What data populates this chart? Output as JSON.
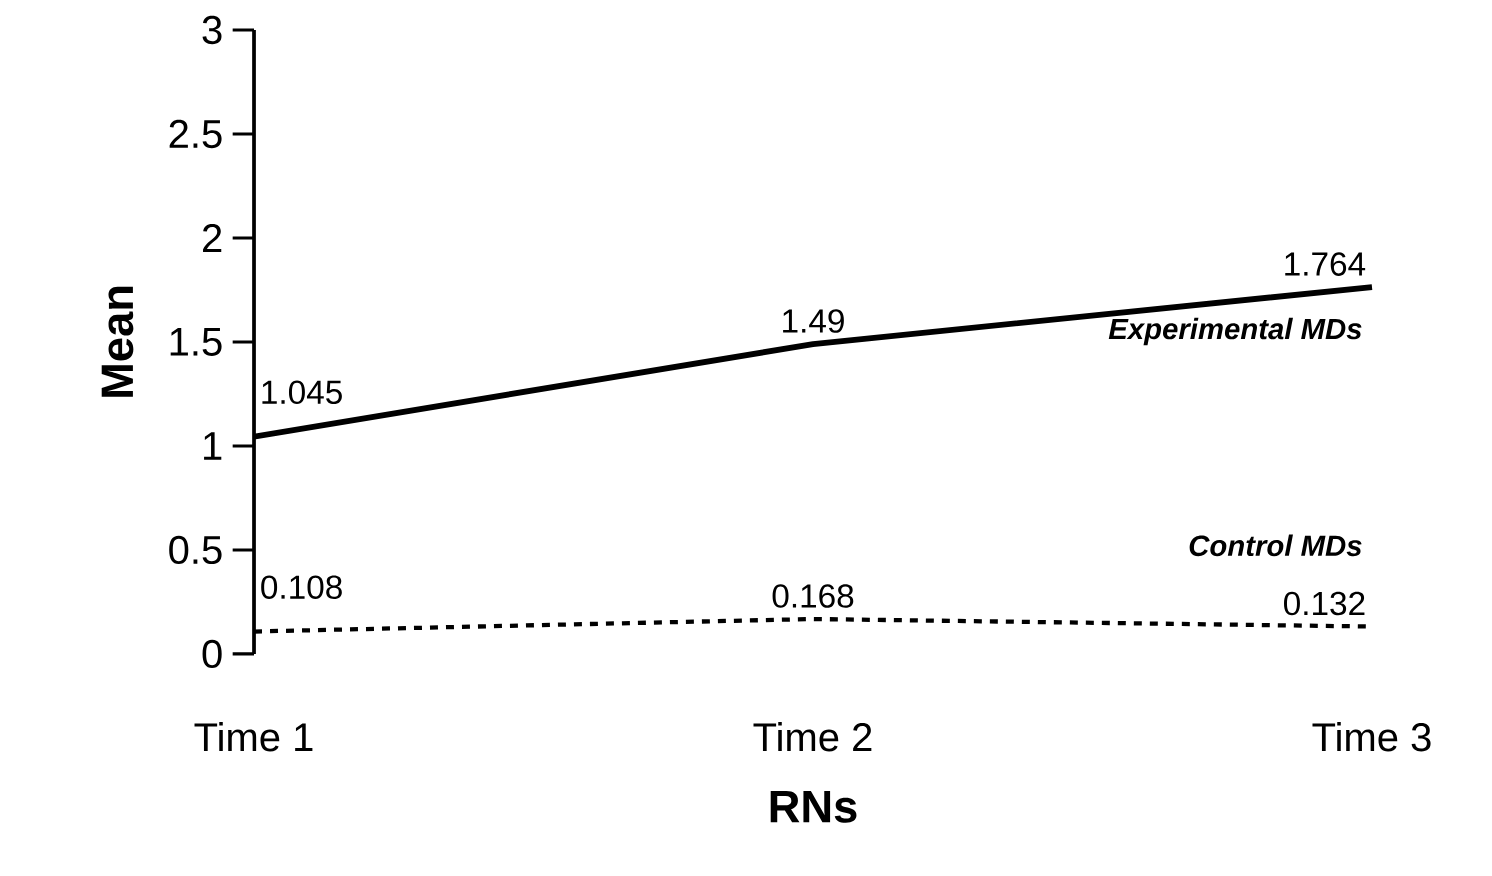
{
  "chart_data": {
    "type": "line",
    "xlabel": "RNs",
    "ylabel": "Mean",
    "categories": [
      "Time 1",
      "Time 2",
      "Time 3"
    ],
    "series": [
      {
        "name": "Experimental MDs",
        "color": "#000000",
        "line_style": "solid",
        "values": [
          1.045,
          1.49,
          1.764
        ]
      },
      {
        "name": "Control MDs",
        "color": "#000000",
        "line_style": "dashed",
        "values": [
          0.108,
          0.168,
          0.132
        ]
      }
    ],
    "ylim": [
      0,
      3
    ],
    "yticks": [
      0,
      0.5,
      1,
      1.5,
      2,
      2.5,
      3
    ],
    "grid": false,
    "legend": false,
    "marker": "none",
    "data_labels": true
  }
}
